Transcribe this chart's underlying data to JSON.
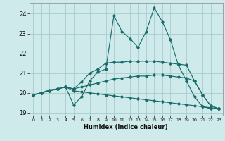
{
  "xlabel": "Humidex (Indice chaleur)",
  "xlim": [
    -0.5,
    23.5
  ],
  "ylim": [
    18.85,
    24.55
  ],
  "yticks": [
    19,
    20,
    21,
    22,
    23,
    24
  ],
  "xticks": [
    0,
    1,
    2,
    3,
    4,
    5,
    6,
    7,
    8,
    9,
    10,
    11,
    12,
    13,
    14,
    15,
    16,
    17,
    18,
    19,
    20,
    21,
    22,
    23
  ],
  "bg_color": "#ceeaea",
  "grid_color": "#aacccc",
  "line_color": "#1a6b6b",
  "curves": [
    {
      "x": [
        0,
        1,
        2,
        3,
        4,
        5,
        6,
        7,
        8,
        9,
        10,
        11,
        12,
        13,
        14,
        15,
        16,
        17,
        18,
        19,
        20,
        21,
        22,
        23
      ],
      "y": [
        19.9,
        20.0,
        20.1,
        20.2,
        20.3,
        19.4,
        19.8,
        20.6,
        21.05,
        21.2,
        23.9,
        23.1,
        22.75,
        22.3,
        23.1,
        24.3,
        23.6,
        22.7,
        21.4,
        20.6,
        19.8,
        19.3,
        19.2,
        19.2
      ]
    },
    {
      "x": [
        0,
        1,
        2,
        3,
        4,
        5,
        6,
        7,
        8,
        9,
        10,
        11,
        12,
        13,
        14,
        15,
        16,
        17,
        18,
        19,
        20,
        21,
        22,
        23
      ],
      "y": [
        19.9,
        20.0,
        20.15,
        20.2,
        20.3,
        20.2,
        20.55,
        21.0,
        21.2,
        21.5,
        21.55,
        21.55,
        21.6,
        21.6,
        21.6,
        21.6,
        21.55,
        21.5,
        21.45,
        21.4,
        20.6,
        19.9,
        19.35,
        19.2
      ]
    },
    {
      "x": [
        0,
        1,
        2,
        3,
        4,
        5,
        6,
        7,
        8,
        9,
        10,
        11,
        12,
        13,
        14,
        15,
        16,
        17,
        18,
        19,
        20,
        21,
        22,
        23
      ],
      "y": [
        19.9,
        20.0,
        20.1,
        20.2,
        20.3,
        20.2,
        20.3,
        20.4,
        20.5,
        20.6,
        20.7,
        20.75,
        20.8,
        20.85,
        20.85,
        20.9,
        20.9,
        20.85,
        20.8,
        20.75,
        20.6,
        19.9,
        19.35,
        19.2
      ]
    },
    {
      "x": [
        0,
        1,
        2,
        3,
        4,
        5,
        6,
        7,
        8,
        9,
        10,
        11,
        12,
        13,
        14,
        15,
        16,
        17,
        18,
        19,
        20,
        21,
        22,
        23
      ],
      "y": [
        19.9,
        20.0,
        20.1,
        20.2,
        20.3,
        20.1,
        20.05,
        20.0,
        19.95,
        19.9,
        19.85,
        19.8,
        19.75,
        19.7,
        19.65,
        19.6,
        19.55,
        19.5,
        19.45,
        19.4,
        19.35,
        19.3,
        19.25,
        19.2
      ]
    }
  ]
}
